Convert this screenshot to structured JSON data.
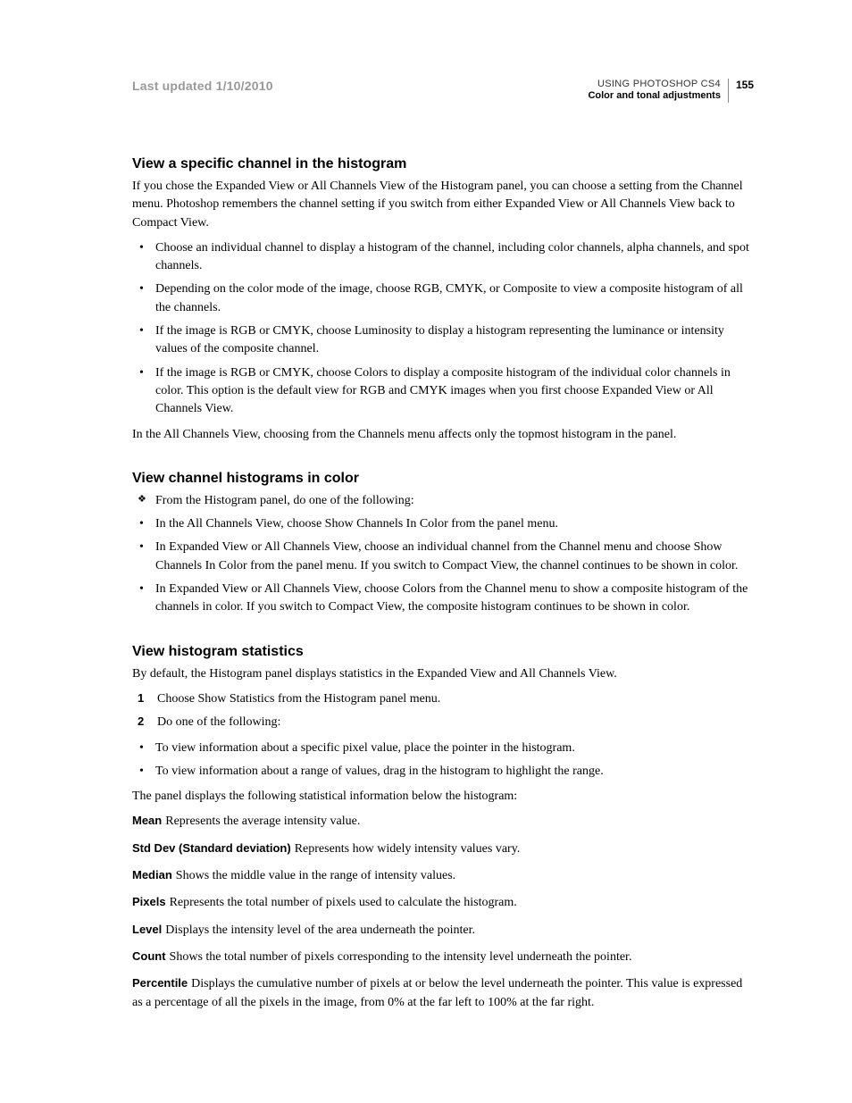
{
  "header": {
    "last_updated": "Last updated 1/10/2010",
    "doc_title": "USING PHOTOSHOP CS4",
    "chapter_title": "Color and tonal adjustments",
    "page_number": "155"
  },
  "sections": [
    {
      "heading": "View a specific channel in the histogram",
      "intro": "If you chose the Expanded View or All Channels View of the Histogram panel, you can choose a setting from the Channel menu. Photoshop remembers the channel setting if you switch from either Expanded View or All Channels View back to Compact View.",
      "bullets": [
        "Choose an individual channel to display a histogram of the channel, including color channels, alpha channels, and spot channels.",
        "Depending on the color mode of the image, choose RGB, CMYK, or Composite to view a composite histogram of all the channels.",
        "If the image is RGB or CMYK, choose Luminosity to display a histogram representing the luminance or intensity values of the composite channel.",
        "If the image is RGB or CMYK, choose Colors to display a composite histogram of the individual color channels in color. This option is the default view for RGB and CMYK images when you first choose Expanded View or All Channels View."
      ],
      "trailing": "In the All Channels View, choosing from the Channels menu affects only the topmost histogram in the panel."
    },
    {
      "heading": "View channel histograms in color",
      "diamond": "From the Histogram panel, do one of the following:",
      "bullets": [
        "In the All Channels View, choose Show Channels In Color from the panel menu.",
        "In Expanded View or All Channels View, choose an individual channel from the Channel menu and choose Show Channels In Color from the panel menu. If you switch to Compact View, the channel continues to be shown in color.",
        "In Expanded View or All Channels View, choose Colors from the Channel menu to show a composite histogram of the channels in color. If you switch to Compact View, the composite histogram continues to be shown in color."
      ]
    },
    {
      "heading": "View histogram statistics",
      "intro": "By default, the Histogram panel displays statistics in the Expanded View and All Channels View.",
      "steps": [
        "Choose Show Statistics from the Histogram panel menu.",
        "Do one of the following:"
      ],
      "sub_bullets": [
        "To view information about a specific pixel value, place the pointer in the histogram.",
        "To view information about a range of values, drag in the histogram to highlight the range."
      ],
      "trailing": "The panel displays the following statistical information below the histogram:",
      "definitions": [
        {
          "term": "Mean",
          "desc": "Represents the average intensity value."
        },
        {
          "term": "Std Dev (Standard deviation)",
          "desc": "Represents how widely intensity values vary."
        },
        {
          "term": "Median",
          "desc": "Shows the middle value in the range of intensity values."
        },
        {
          "term": "Pixels",
          "desc": "Represents the total number of pixels used to calculate the histogram."
        },
        {
          "term": "Level",
          "desc": "Displays the intensity level of the area underneath the pointer."
        },
        {
          "term": "Count",
          "desc": "Shows the total number of pixels corresponding to the intensity level underneath the pointer."
        },
        {
          "term": "Percentile",
          "desc": "Displays the cumulative number of pixels at or below the level underneath the pointer. This value is expressed as a percentage of all the pixels in the image, from 0% at the far left to 100% at the far right."
        }
      ]
    }
  ]
}
